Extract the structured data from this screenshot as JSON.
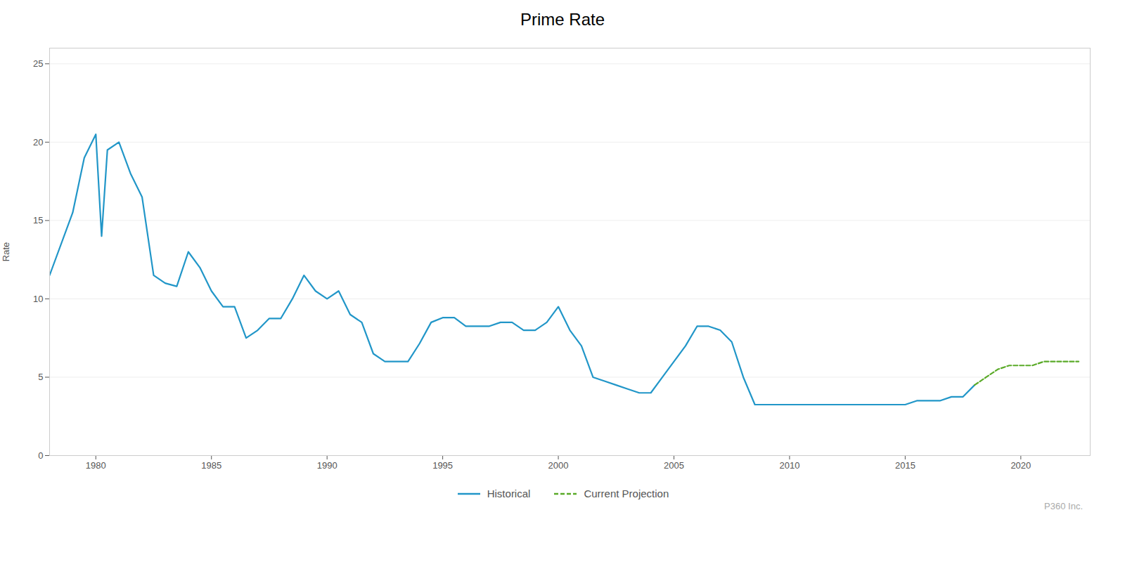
{
  "chart_data": {
    "type": "line",
    "title": "Prime Rate",
    "y_label": "Rate",
    "annotations": [
      {
        "text": "P360 Inc."
      }
    ],
    "xlim": [
      1978,
      2023
    ],
    "xticks": [
      1980,
      1985,
      1990,
      1995,
      2000,
      2005,
      2010,
      2015,
      2020
    ],
    "ylim": [
      0,
      26
    ],
    "yticks": [
      0,
      5,
      10,
      15,
      20,
      25
    ],
    "grid": "y",
    "legend": "bottom",
    "series": [
      {
        "name": "Historical",
        "color": "#2196C8",
        "line_style": "solid",
        "x": [
          1978.0,
          1979.0,
          1979.5,
          1980.0,
          1980.25,
          1980.5,
          1981.0,
          1981.5,
          1982.0,
          1982.25,
          1982.5,
          1983.0,
          1983.5,
          1984.0,
          1984.5,
          1985.0,
          1985.5,
          1986.0,
          1986.5,
          1987.0,
          1987.5,
          1988.0,
          1988.5,
          1989.0,
          1989.5,
          1990.0,
          1990.5,
          1991.0,
          1991.5,
          1992.0,
          1992.5,
          1993.0,
          1993.5,
          1994.0,
          1994.5,
          1995.0,
          1995.5,
          1996.0,
          1996.5,
          1997.0,
          1997.5,
          1998.0,
          1998.5,
          1999.0,
          1999.5,
          2000.0,
          2000.5,
          2001.0,
          2001.5,
          2002.0,
          2002.5,
          2003.0,
          2003.5,
          2004.0,
          2004.5,
          2005.0,
          2005.5,
          2006.0,
          2006.5,
          2007.0,
          2007.5,
          2008.0,
          2008.5,
          2009.0,
          2009.5,
          2010.0,
          2015.0,
          2015.5,
          2016.0,
          2016.5,
          2017.0,
          2017.5,
          2018.0
        ],
        "values": [
          11.5,
          15.5,
          19.0,
          20.5,
          14.0,
          19.5,
          20.0,
          18.0,
          16.5,
          14.0,
          11.5,
          11.0,
          10.8,
          13.0,
          12.0,
          10.5,
          9.5,
          9.5,
          7.5,
          8.0,
          8.75,
          8.75,
          10.0,
          11.5,
          10.5,
          10.0,
          10.5,
          9.0,
          8.5,
          6.5,
          6.0,
          6.0,
          6.0,
          7.15,
          8.5,
          8.8,
          8.8,
          8.25,
          8.25,
          8.25,
          8.5,
          8.5,
          8.0,
          8.0,
          8.5,
          9.5,
          8.0,
          7.0,
          5.0,
          4.75,
          4.5,
          4.25,
          4.0,
          4.0,
          5.0,
          6.0,
          7.0,
          8.25,
          8.25,
          8.0,
          7.25,
          5.0,
          3.25,
          3.25,
          3.25,
          3.25,
          3.25,
          3.5,
          3.5,
          3.5,
          3.75,
          3.75,
          4.5
        ]
      },
      {
        "name": "Current Projection",
        "color": "#5aaa28",
        "line_style": "dashed",
        "x": [
          2018.0,
          2018.5,
          2019.0,
          2019.5,
          2020.0,
          2020.5,
          2021.0,
          2021.5,
          2022.0,
          2022.5
        ],
        "values": [
          4.5,
          5.0,
          5.5,
          5.75,
          5.75,
          5.75,
          6.0,
          6.0,
          6.0,
          6.0
        ]
      }
    ]
  }
}
